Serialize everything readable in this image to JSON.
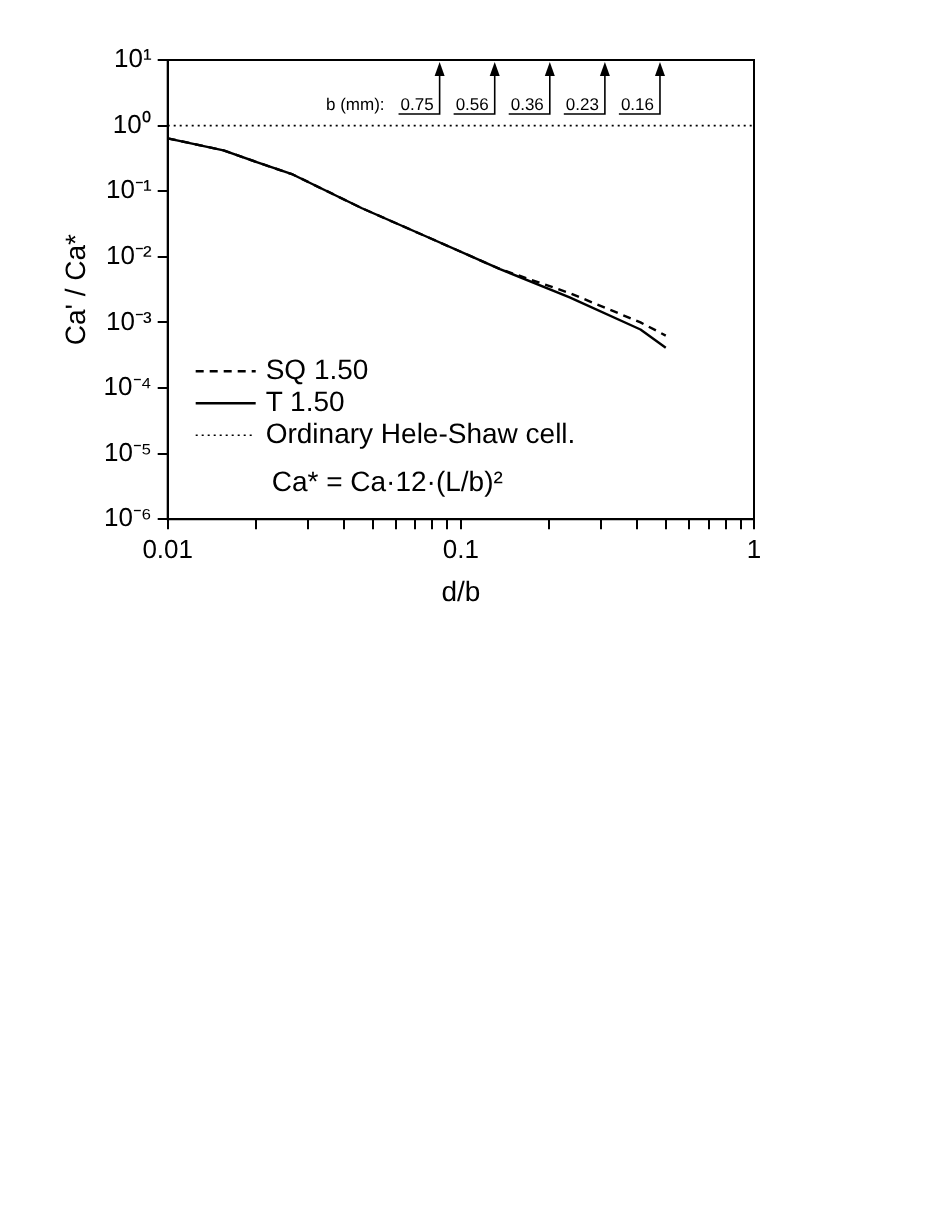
{
  "chart_data": {
    "type": "line",
    "xlabel": "d/b",
    "ylabel": "Ca' / Ca*",
    "log": "xy",
    "xlim": [
      0.01,
      1
    ],
    "ylim": [
      1e-06,
      10
    ],
    "xticks": [
      {
        "value": 0.01,
        "label": "0.01"
      },
      {
        "value": 0.02,
        "label": null
      },
      {
        "value": 0.03,
        "label": null
      },
      {
        "value": 0.04,
        "label": null
      },
      {
        "value": 0.05,
        "label": null
      },
      {
        "value": 0.06,
        "label": null
      },
      {
        "value": 0.07,
        "label": null
      },
      {
        "value": 0.08,
        "label": null
      },
      {
        "value": 0.09,
        "label": null
      },
      {
        "value": 0.1,
        "label": "0.1"
      },
      {
        "value": 0.2,
        "label": null
      },
      {
        "value": 0.3,
        "label": null
      },
      {
        "value": 0.4,
        "label": null
      },
      {
        "value": 0.5,
        "label": null
      },
      {
        "value": 0.6,
        "label": null
      },
      {
        "value": 0.7,
        "label": null
      },
      {
        "value": 0.8,
        "label": null
      },
      {
        "value": 0.9,
        "label": null
      },
      {
        "value": 1,
        "label": "1"
      }
    ],
    "yticks": [
      {
        "value": 1e-06,
        "label": "10⁻⁶"
      },
      {
        "value": 1e-05,
        "label": "10⁻⁵"
      },
      {
        "value": 0.0001,
        "label": "10⁻⁴"
      },
      {
        "value": 0.001,
        "label": "10⁻³"
      },
      {
        "value": 0.01,
        "label": "10⁻²"
      },
      {
        "value": 0.1,
        "label": "10⁻¹"
      },
      {
        "value": 1,
        "label": "10⁰"
      },
      {
        "value": 10,
        "label": "10¹"
      }
    ],
    "x": [
      0.01,
      0.0155,
      0.02,
      0.0267,
      0.046,
      0.079,
      0.136,
      0.235,
      0.41,
      0.5
    ],
    "series": [
      {
        "name": "SQ 1.50",
        "color": "#000000",
        "line_style": "dashed",
        "values": [
          0.64,
          0.42,
          0.28,
          0.18,
          0.055,
          0.019,
          0.0065,
          0.0028,
          0.001,
          0.00063
        ]
      },
      {
        "name": "T 1.50",
        "color": "#000000",
        "line_style": "solid",
        "values": [
          0.64,
          0.42,
          0.28,
          0.18,
          0.055,
          0.019,
          0.0065,
          0.0024,
          0.00078,
          0.00041
        ]
      }
    ],
    "ref_lines": [
      {
        "axis": "y",
        "value": 1,
        "label": "Ordinary Hele-Shaw cell.",
        "color": "#000000",
        "line_style": "dotted"
      }
    ],
    "annotations": [
      "b (mm):",
      "0.75",
      "0.56",
      "0.36",
      "0.23",
      "0.16",
      "Ca* = Ca·12·(L/b)²"
    ],
    "legend": "bottom left",
    "grid": false,
    "marker": "none"
  }
}
